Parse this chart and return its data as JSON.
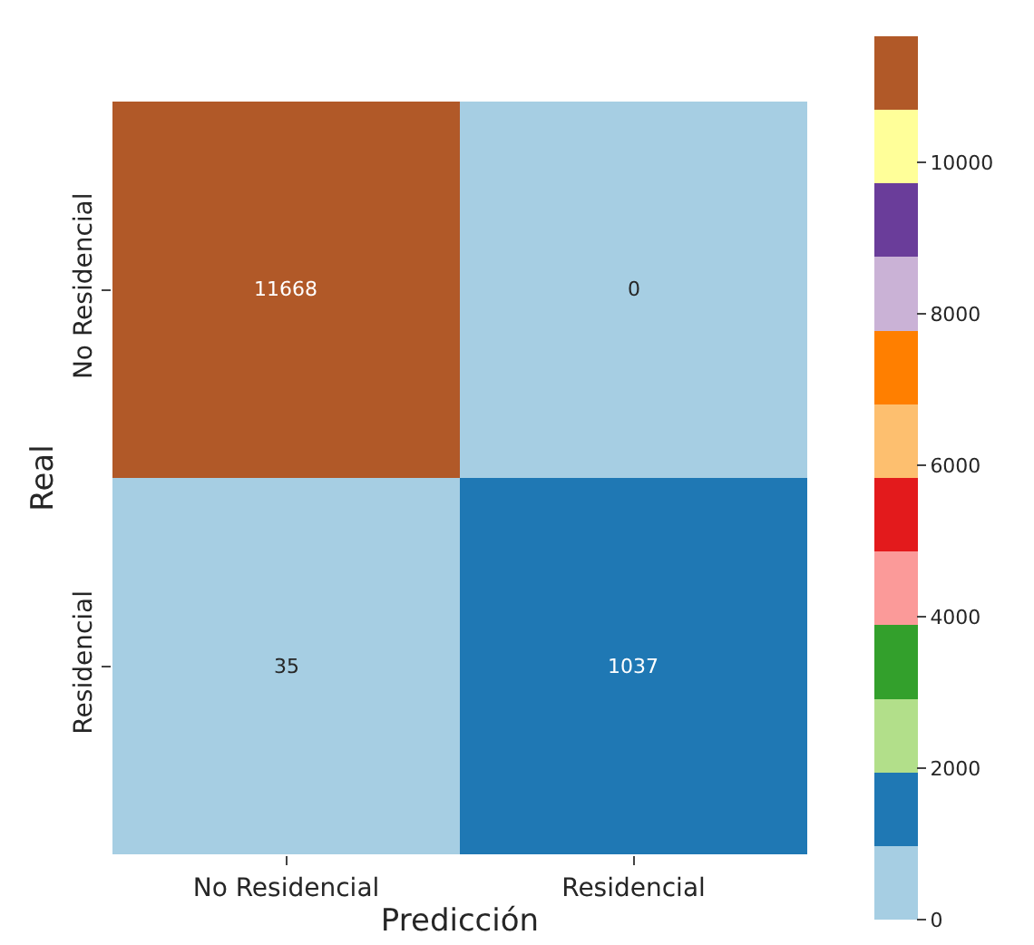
{
  "chart_data": {
    "type": "heatmap",
    "xlabel": "Predicción",
    "ylabel": "Real",
    "categories": [
      "No Residencial",
      "Residencial"
    ],
    "y_categories": [
      "No Residencial",
      "Residencial"
    ],
    "cells": [
      [
        11668,
        0
      ],
      [
        35,
        1037
      ]
    ],
    "data_labels": true,
    "clim": [
      0,
      11668
    ],
    "cticks": [
      0,
      2000,
      4000,
      6000,
      8000,
      10000
    ],
    "colors": [
      "#a6cee3",
      "#1f78b4",
      "#b2df8a",
      "#33a02c",
      "#fb9a99",
      "#e31a1c",
      "#fdbf6f",
      "#ff7f00",
      "#cab2d6",
      "#6a3d9a",
      "#ffff99",
      "#b15928"
    ]
  }
}
